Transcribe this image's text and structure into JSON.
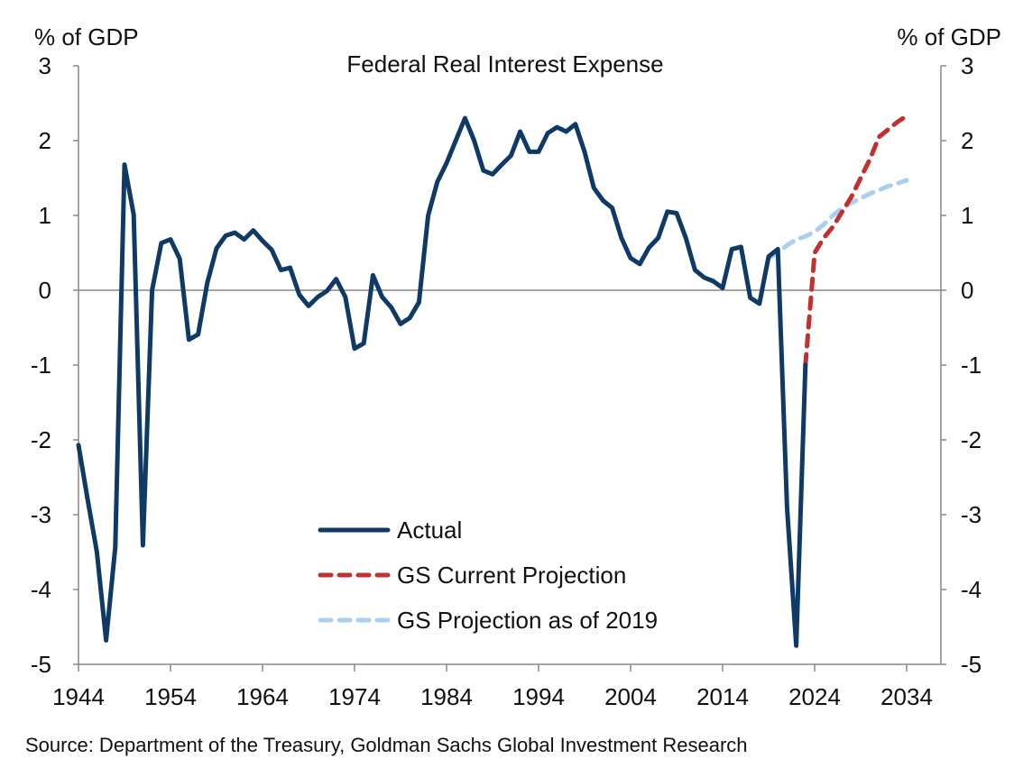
{
  "chart_data": {
    "type": "line",
    "title": "Federal Real Interest Expense",
    "ylabel_left": "% of GDP",
    "ylabel_right": "% of GDP",
    "xlabel": "",
    "xlim": [
      1944,
      2037.5
    ],
    "ylim": [
      -5,
      3
    ],
    "x_ticks": [
      1944,
      1954,
      1964,
      1974,
      1984,
      1994,
      2004,
      2014,
      2024,
      2034
    ],
    "y_ticks": [
      3,
      2,
      1,
      0,
      -1,
      -2,
      -3,
      -4,
      -5
    ],
    "legend_position": "bottom-center",
    "series": [
      {
        "name": "Actual",
        "color": "#0f3a66",
        "style": "solid",
        "x": [
          1944,
          1945,
          1946,
          1947,
          1948,
          1949,
          1950,
          1951,
          1952,
          1953,
          1954,
          1955,
          1956,
          1957,
          1958,
          1959,
          1960,
          1961,
          1962,
          1963,
          1964,
          1965,
          1966,
          1967,
          1968,
          1969,
          1970,
          1971,
          1972,
          1973,
          1974,
          1975,
          1976,
          1977,
          1978,
          1979,
          1980,
          1981,
          1982,
          1983,
          1984,
          1985,
          1986,
          1987,
          1988,
          1989,
          1990,
          1991,
          1992,
          1993,
          1994,
          1995,
          1996,
          1997,
          1998,
          1999,
          2000,
          2001,
          2002,
          2003,
          2004,
          2005,
          2006,
          2007,
          2008,
          2009,
          2010,
          2011,
          2012,
          2013,
          2014,
          2015,
          2016,
          2017,
          2018,
          2019,
          2020,
          2021,
          2022,
          2023
        ],
        "values": [
          -2.07,
          -2.8,
          -3.5,
          -4.68,
          -3.43,
          1.68,
          1.01,
          -3.41,
          0.0,
          0.63,
          0.68,
          0.42,
          -0.66,
          -0.59,
          0.1,
          0.56,
          0.73,
          0.77,
          0.68,
          0.8,
          0.66,
          0.54,
          0.27,
          0.3,
          -0.06,
          -0.21,
          -0.09,
          -0.01,
          0.15,
          -0.09,
          -0.78,
          -0.71,
          0.2,
          -0.09,
          -0.23,
          -0.45,
          -0.37,
          -0.16,
          1.0,
          1.45,
          1.7,
          2.0,
          2.3,
          2.0,
          1.6,
          1.55,
          1.68,
          1.8,
          2.12,
          1.85,
          1.85,
          2.1,
          2.18,
          2.12,
          2.22,
          1.85,
          1.37,
          1.2,
          1.1,
          0.7,
          0.43,
          0.35,
          0.57,
          0.7,
          1.05,
          1.03,
          0.7,
          0.27,
          0.17,
          0.12,
          0.03,
          0.55,
          0.58,
          -0.1,
          -0.18,
          0.45,
          0.55,
          -2.9,
          -4.75,
          -1.0
        ]
      },
      {
        "name": "GS Current Projection",
        "color": "#c0312f",
        "style": "dashed",
        "x": [
          2023,
          2024,
          2025,
          2026,
          2027,
          2028,
          2029,
          2030,
          2031,
          2032,
          2033,
          2034
        ],
        "values": [
          -1.0,
          0.5,
          0.7,
          0.85,
          1.05,
          1.25,
          1.5,
          1.75,
          2.05,
          2.15,
          2.25,
          2.33
        ]
      },
      {
        "name": "GS Projection as of 2019",
        "color": "#a9d0ee",
        "style": "dashed",
        "x": [
          2019,
          2020,
          2021,
          2022,
          2023,
          2024,
          2025,
          2026,
          2027,
          2028,
          2029,
          2030,
          2031,
          2032,
          2033,
          2034
        ],
        "values": [
          0.43,
          0.5,
          0.6,
          0.68,
          0.72,
          0.78,
          0.88,
          1.0,
          1.1,
          1.17,
          1.23,
          1.29,
          1.34,
          1.39,
          1.43,
          1.47
        ]
      }
    ],
    "source": "Source: Department of the Treasury, Goldman Sachs Global Investment Research"
  }
}
